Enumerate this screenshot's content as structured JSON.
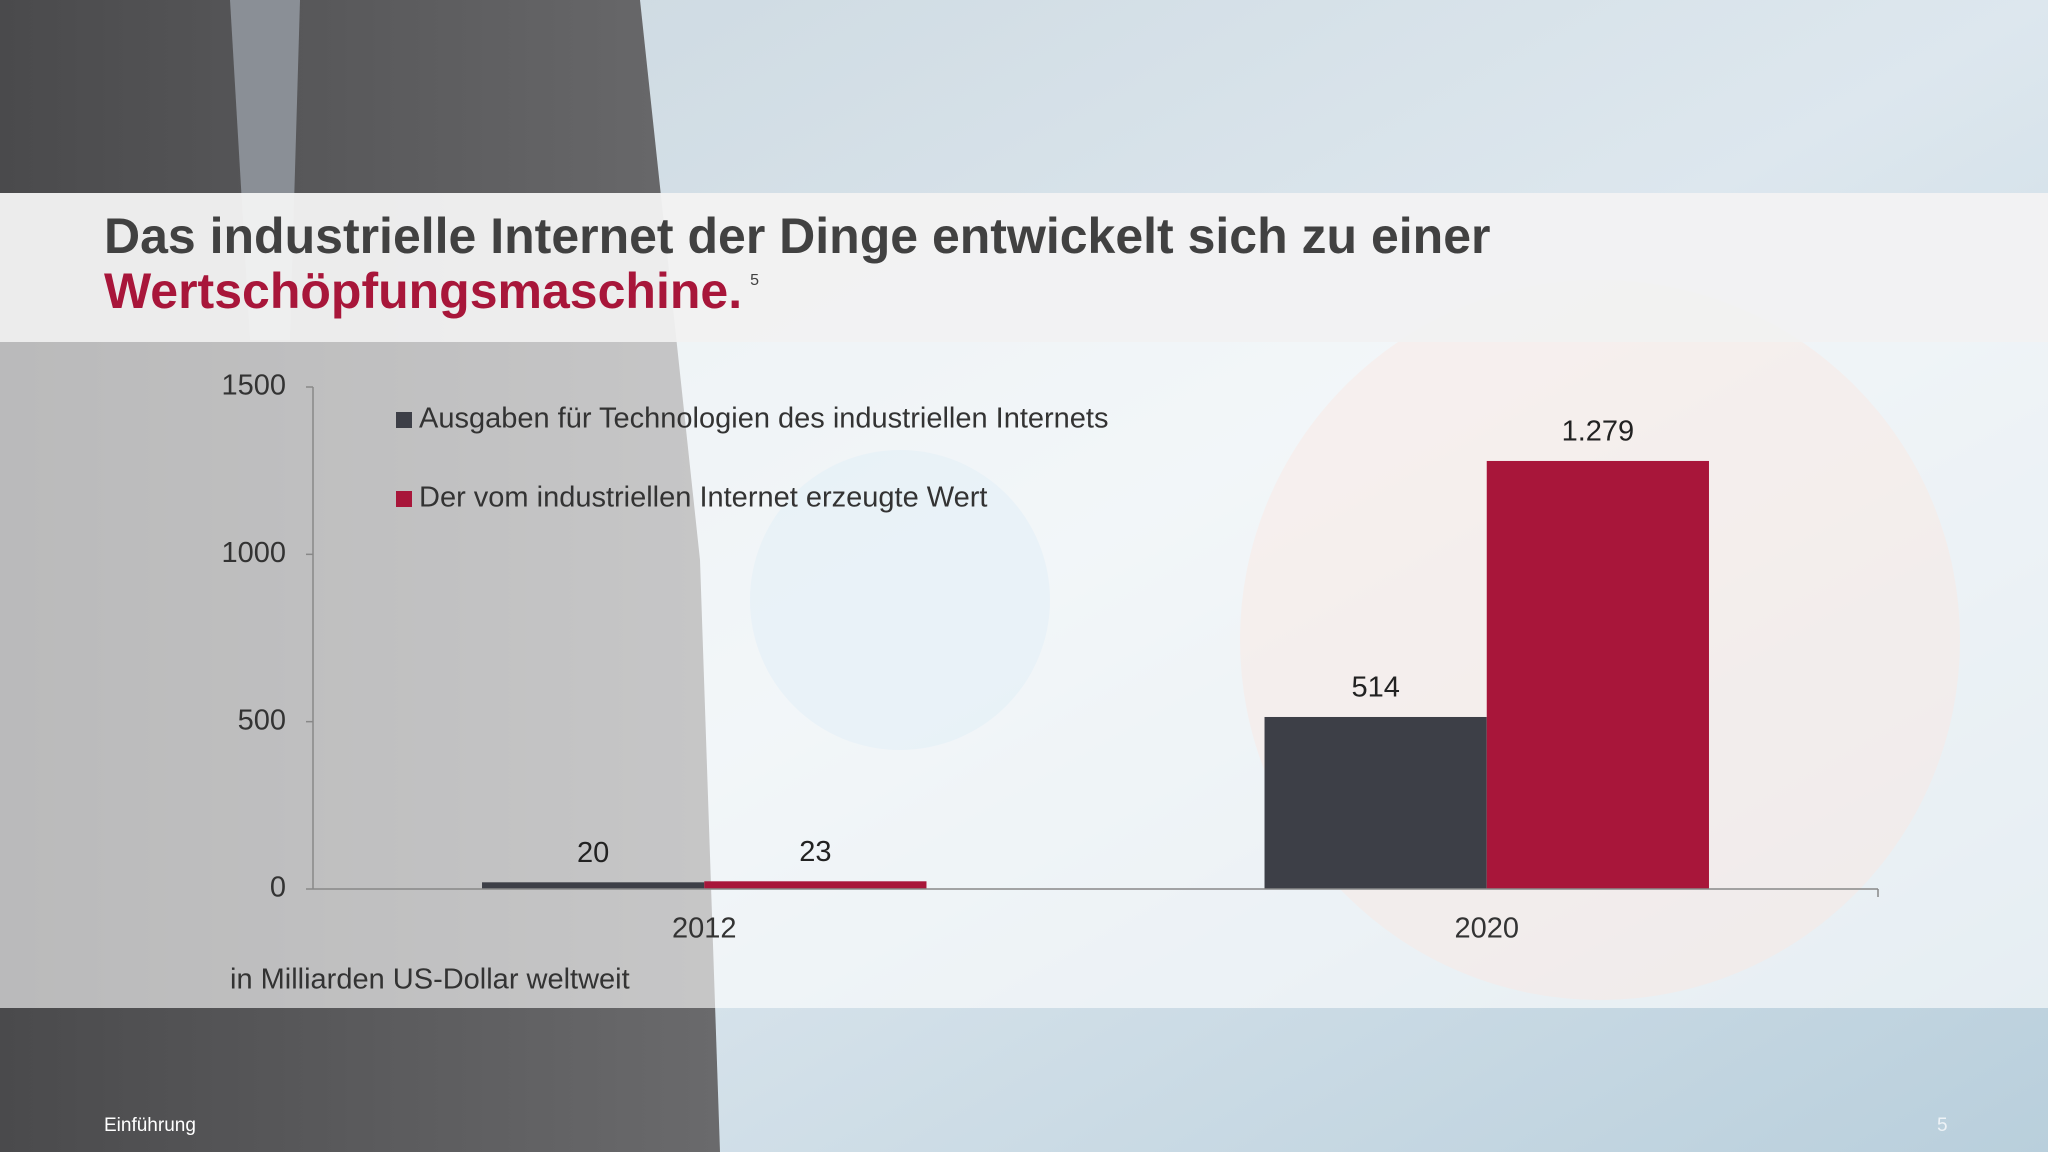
{
  "chart_data": {
    "type": "bar",
    "title": "Das industrielle Internet der Dinge entwickelt sich zu einer",
    "title_highlight": "Wertschöpfungsmaschine.",
    "footnote_ref": "5",
    "unit_note": "in Milliarden US-Dollar weltweit",
    "categories": [
      "2012",
      "2020"
    ],
    "series": [
      {
        "name": "Ausgaben für Technologien des industriellen Internets",
        "color": "#3d3f47",
        "values": [
          20,
          514
        ]
      },
      {
        "name": "Der vom industriellen Internet erzeugte Wert",
        "color": "#a8163a",
        "values": [
          23,
          1279
        ],
        "value_labels": [
          "23",
          "1.279"
        ]
      }
    ],
    "ylim": [
      0,
      1500
    ],
    "yticks": [
      0,
      500,
      1000,
      1500
    ],
    "legend": "top-left",
    "grid": false
  },
  "footer": {
    "section": "Einführung",
    "page": "5"
  }
}
